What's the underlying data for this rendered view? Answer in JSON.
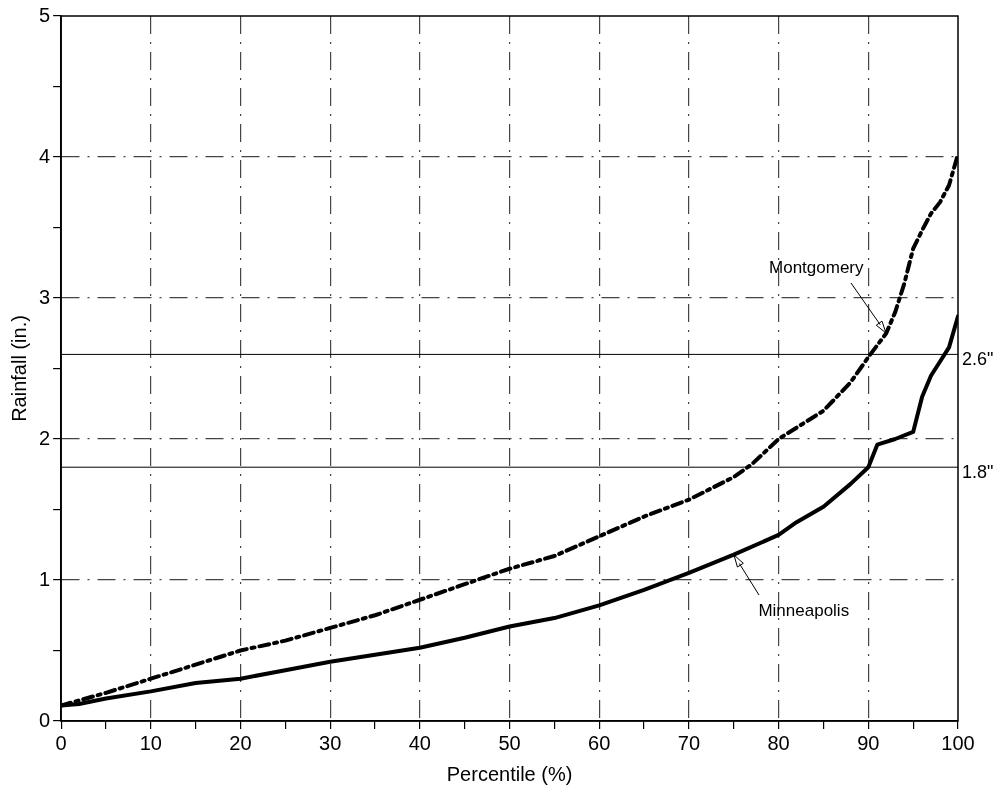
{
  "chart_data": {
    "type": "line",
    "xlabel": "Percentile (%)",
    "ylabel": "Rainfall (in.)",
    "xlim": [
      0,
      100
    ],
    "ylim": [
      0,
      5
    ],
    "xticks": [
      0,
      {
        "value": 5,
        "label": null
      },
      10,
      {
        "value": 15,
        "label": null
      },
      20,
      {
        "value": 25,
        "label": null
      },
      30,
      {
        "value": 35,
        "label": null
      },
      40,
      {
        "value": 45,
        "label": null
      },
      50,
      {
        "value": 55,
        "label": null
      },
      60,
      {
        "value": 65,
        "label": null
      },
      70,
      {
        "value": 75,
        "label": null
      },
      80,
      {
        "value": 85,
        "label": null
      },
      90,
      {
        "value": 95,
        "label": null
      },
      100
    ],
    "yticks": [
      0,
      {
        "value": 0.5,
        "label": null
      },
      1,
      {
        "value": 1.5,
        "label": null
      },
      2,
      {
        "value": 2.5,
        "label": null
      },
      3,
      {
        "value": 3.5,
        "label": null
      },
      4,
      {
        "value": 4.5,
        "label": null
      },
      5
    ],
    "grid": true,
    "marker": "none",
    "series": [
      {
        "name": "Montgomery",
        "color": "#000000",
        "line_style": "dashed",
        "x": [
          0,
          5,
          10,
          15,
          20,
          25,
          30,
          35,
          40,
          45,
          50,
          55,
          60,
          65,
          70,
          75,
          77,
          80,
          85,
          88,
          90,
          92,
          93,
          94,
          95,
          96,
          97,
          98,
          99,
          100
        ],
        "values": [
          0.11,
          0.2,
          0.3,
          0.4,
          0.5,
          0.57,
          0.66,
          0.75,
          0.86,
          0.97,
          1.08,
          1.17,
          1.31,
          1.45,
          1.57,
          1.73,
          1.82,
          2.0,
          2.2,
          2.4,
          2.58,
          2.75,
          2.9,
          3.1,
          3.35,
          3.48,
          3.6,
          3.68,
          3.8,
          4.02
        ]
      },
      {
        "name": "Minneapolis",
        "color": "#000000",
        "line_style": "solid",
        "x": [
          0,
          2,
          5,
          10,
          15,
          20,
          25,
          30,
          35,
          40,
          45,
          50,
          55,
          60,
          65,
          70,
          75,
          80,
          82,
          85,
          88,
          90,
          91,
          93,
          95,
          96,
          97,
          98,
          99,
          100
        ],
        "values": [
          0.11,
          0.12,
          0.16,
          0.21,
          0.27,
          0.3,
          0.36,
          0.42,
          0.47,
          0.52,
          0.59,
          0.67,
          0.73,
          0.82,
          0.93,
          1.05,
          1.18,
          1.32,
          1.41,
          1.52,
          1.68,
          1.8,
          1.96,
          2.0,
          2.05,
          2.3,
          2.45,
          2.55,
          2.65,
          2.87
        ]
      }
    ],
    "ref_lines": [
      {
        "axis": "y",
        "value": 2.6,
        "label": "2.6\""
      },
      {
        "axis": "y",
        "value": 1.8,
        "label": "1.8\""
      }
    ]
  }
}
